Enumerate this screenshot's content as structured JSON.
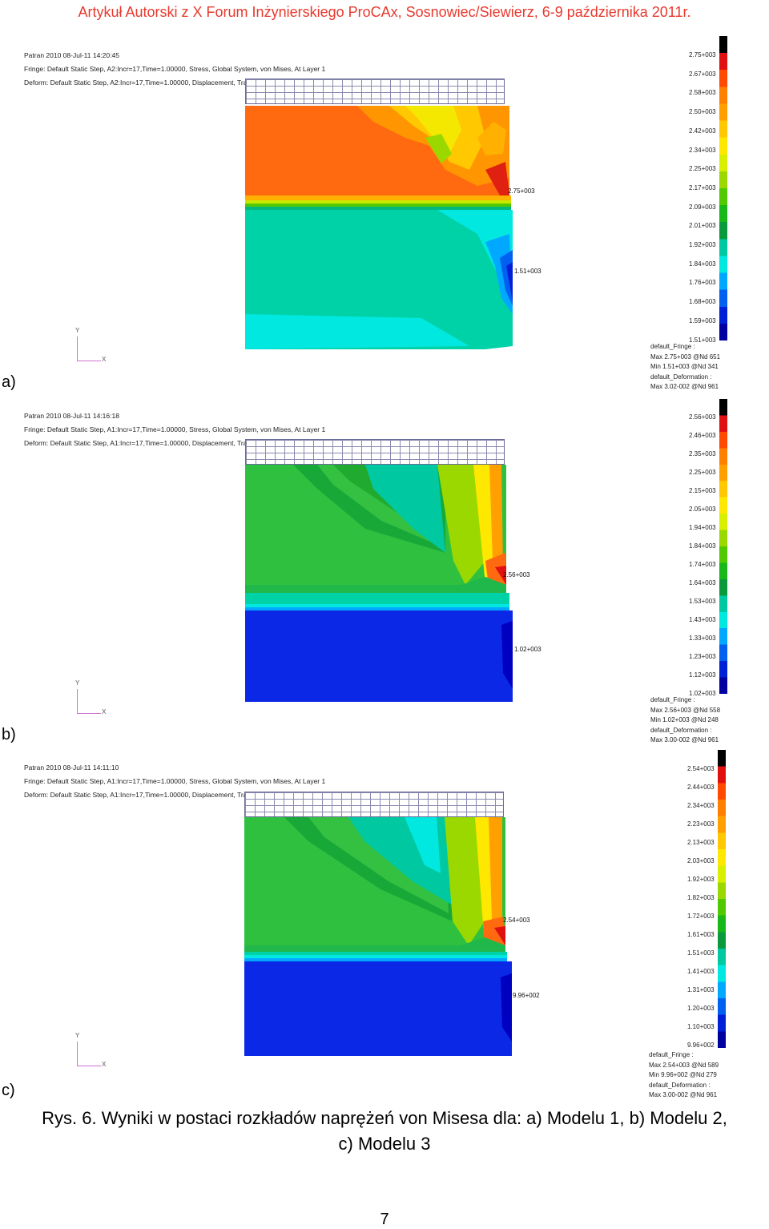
{
  "header": "Artykuł Autorski z X Forum Inżynierskiego ProCAx, Sosnowiec/Siewierz, 6-9 października 2011r.",
  "axis_labels": {
    "y": "Y",
    "x": "X"
  },
  "panels": [
    {
      "label": "a)",
      "title": "Patran 2010 08-Jul-11 14:20:45",
      "fringe": "Fringe: Default Static Step, A2:Incr=17,Time=1.00000, Stress, Global System, von Mises, At Layer 1",
      "deform": "Deform: Default Static Step, A2:Incr=17,Time=1.00000, Displacement, Translation",
      "max_annot": "2.75+003",
      "min_annot": "1.51+003",
      "ticks": [
        "2.75+003",
        "2.67+003",
        "2.58+003",
        "2.50+003",
        "2.42+003",
        "2.34+003",
        "2.25+003",
        "2.17+003",
        "2.09+003",
        "2.01+003",
        "1.92+003",
        "1.84+003",
        "1.76+003",
        "1.68+003",
        "1.59+003",
        "1.51+003"
      ],
      "notes": [
        "default_Fringe :",
        "Max 2.75+003 @Nd 651",
        "Min 1.51+003 @Nd 341",
        "default_Deformation :",
        "Max 3.02-002 @Nd 961"
      ]
    },
    {
      "label": "b)",
      "title": "Patran 2010 08-Jul-11 14:16:18",
      "fringe": "Fringe: Default Static Step, A1:Incr=17,Time=1.00000, Stress, Global System, von Mises, At Layer 1",
      "deform": "Deform: Default Static Step, A1:Incr=17,Time=1.00000, Displacement, Translation",
      "max_annot": "2.56+003",
      "min_annot": "1.02+003",
      "ticks": [
        "2.56+003",
        "2.46+003",
        "2.35+003",
        "2.25+003",
        "2.15+003",
        "2.05+003",
        "1.94+003",
        "1.84+003",
        "1.74+003",
        "1.64+003",
        "1.53+003",
        "1.43+003",
        "1.33+003",
        "1.23+003",
        "1.12+003",
        "1.02+003"
      ],
      "notes": [
        "default_Fringe :",
        "Max 2.56+003 @Nd 558",
        "Min 1.02+003 @Nd 248",
        "default_Deformation :",
        "Max 3.00-002 @Nd 961"
      ]
    },
    {
      "label": "c)",
      "title": "Patran 2010 08-Jul-11 14:11:10",
      "fringe": "Fringe: Default Static Step, A1:Incr=17,Time=1.00000, Stress, Global System, von Mises, At Layer 1",
      "deform": "Deform: Default Static Step, A1:Incr=17,Time=1.00000, Displacement, Translation",
      "max_annot": "2.54+003",
      "min_annot": "9.96+002",
      "ticks": [
        "2.54+003",
        "2.44+003",
        "2.34+003",
        "2.23+003",
        "2.13+003",
        "2.03+003",
        "1.92+003",
        "1.82+003",
        "1.72+003",
        "1.61+003",
        "1.51+003",
        "1.41+003",
        "1.31+003",
        "1.20+003",
        "1.10+003",
        "9.96+002"
      ],
      "notes": [
        "default_Fringe :",
        "Max 2.54+003 @Nd 589",
        "Min 9.96+002 @Nd 279",
        "default_Deformation :",
        "Max 3.00-002 @Nd 961"
      ]
    }
  ],
  "colors": {
    "scale": [
      "#000000",
      "#e01010",
      "#ff4a00",
      "#ff8000",
      "#ffa000",
      "#ffc800",
      "#ffe800",
      "#d8f000",
      "#9ad800",
      "#52c800",
      "#18b818",
      "#0a9a3c",
      "#00c8a0",
      "#00e8e0",
      "#00a8ff",
      "#0060f0",
      "#0020d8",
      "#0000a0"
    ],
    "orange": "#ff6a10",
    "teal": "#00d2a8",
    "blue": "#0a28e6",
    "green": "#34c040"
  },
  "caption_line1": "Rys. 6. Wyniki w postaci rozkładów naprężeń von Misesa dla: a) Modelu 1, b) Modelu 2,",
  "caption_line2": "c) Modelu 3",
  "page_number": "7"
}
